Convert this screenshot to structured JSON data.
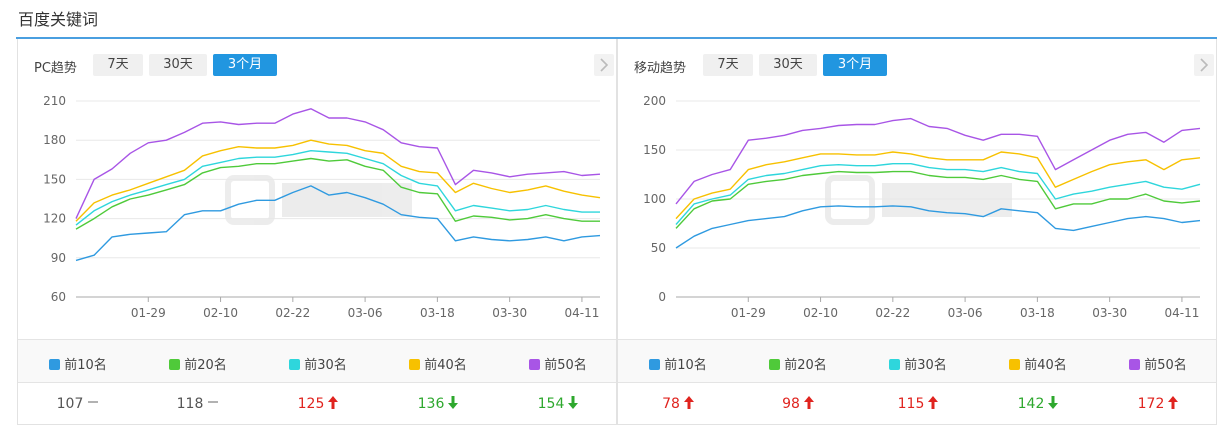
{
  "page": {
    "title": "百度关键词"
  },
  "colors": {
    "top10": "#2f9ae0",
    "top20": "#4fca3a",
    "top30": "#2ed6dc",
    "top40": "#f7c100",
    "top50": "#a855e6",
    "up": "#e0241f",
    "down": "#2ea82e",
    "flat": "#555555"
  },
  "ranges": [
    "7天",
    "30天",
    "3个月"
  ],
  "legend": [
    "前10名",
    "前20名",
    "前30名",
    "前40名",
    "前50名"
  ],
  "panels": [
    {
      "label": "PC趋势",
      "active_range": "3个月",
      "values": [
        {
          "value": "107",
          "trend": "flat"
        },
        {
          "value": "118",
          "trend": "flat"
        },
        {
          "value": "125",
          "trend": "up"
        },
        {
          "value": "136",
          "trend": "down"
        },
        {
          "value": "154",
          "trend": "down"
        }
      ]
    },
    {
      "label": "移动趋势",
      "active_range": "3个月",
      "values": [
        {
          "value": "78",
          "trend": "up"
        },
        {
          "value": "98",
          "trend": "up"
        },
        {
          "value": "115",
          "trend": "up"
        },
        {
          "value": "142",
          "trend": "down"
        },
        {
          "value": "172",
          "trend": "up"
        }
      ]
    }
  ],
  "chart_data": [
    {
      "type": "line",
      "title": "PC趋势",
      "xlabel": "",
      "ylabel": "",
      "ylim": [
        60,
        210
      ],
      "yticks": [
        60,
        90,
        120,
        150,
        180,
        210
      ],
      "xticks": [
        "01-29",
        "02-10",
        "02-22",
        "03-06",
        "03-18",
        "03-30",
        "04-11"
      ],
      "x": [
        "01-17",
        "01-20",
        "01-23",
        "01-26",
        "01-29",
        "02-01",
        "02-04",
        "02-07",
        "02-10",
        "02-13",
        "02-16",
        "02-19",
        "02-22",
        "02-25",
        "02-28",
        "03-03",
        "03-06",
        "03-09",
        "03-12",
        "03-15",
        "03-18",
        "03-21",
        "03-24",
        "03-27",
        "03-30",
        "04-02",
        "04-05",
        "04-08",
        "04-11",
        "04-14"
      ],
      "grid": true,
      "legend_position": "bottom",
      "series": [
        {
          "name": "前10名",
          "values": [
            88,
            92,
            106,
            108,
            109,
            110,
            123,
            126,
            126,
            131,
            134,
            134,
            140,
            145,
            138,
            140,
            136,
            131,
            123,
            121,
            120,
            103,
            106,
            104,
            103,
            104,
            106,
            103,
            106,
            107
          ]
        },
        {
          "name": "前20名",
          "values": [
            112,
            120,
            129,
            135,
            138,
            142,
            146,
            155,
            159,
            160,
            162,
            162,
            164,
            166,
            164,
            165,
            160,
            157,
            144,
            140,
            139,
            118,
            122,
            121,
            119,
            120,
            123,
            120,
            118,
            118
          ]
        },
        {
          "name": "前30名",
          "values": [
            115,
            126,
            133,
            138,
            142,
            146,
            150,
            160,
            163,
            166,
            167,
            167,
            169,
            172,
            171,
            170,
            166,
            162,
            153,
            147,
            145,
            126,
            130,
            128,
            126,
            127,
            130,
            127,
            125,
            125
          ]
        },
        {
          "name": "前40名",
          "values": [
            118,
            132,
            138,
            142,
            147,
            152,
            157,
            168,
            172,
            175,
            174,
            174,
            176,
            180,
            177,
            176,
            172,
            170,
            160,
            156,
            155,
            140,
            147,
            143,
            140,
            142,
            145,
            141,
            138,
            136
          ]
        },
        {
          "name": "前50名",
          "values": [
            120,
            150,
            158,
            170,
            178,
            180,
            186,
            193,
            194,
            192,
            193,
            193,
            200,
            204,
            197,
            197,
            194,
            188,
            178,
            175,
            174,
            146,
            157,
            155,
            152,
            154,
            155,
            156,
            153,
            154
          ]
        }
      ]
    },
    {
      "type": "line",
      "title": "移动趋势",
      "xlabel": "",
      "ylabel": "",
      "ylim": [
        0,
        200
      ],
      "yticks": [
        0,
        50,
        100,
        150,
        200
      ],
      "xticks": [
        "01-29",
        "02-10",
        "02-22",
        "03-06",
        "03-18",
        "03-30",
        "04-11"
      ],
      "x": [
        "01-17",
        "01-20",
        "01-23",
        "01-26",
        "01-29",
        "02-01",
        "02-04",
        "02-07",
        "02-10",
        "02-13",
        "02-16",
        "02-19",
        "02-22",
        "02-25",
        "02-28",
        "03-03",
        "03-06",
        "03-09",
        "03-12",
        "03-15",
        "03-18",
        "03-21",
        "03-24",
        "03-27",
        "03-30",
        "04-02",
        "04-05",
        "04-08",
        "04-11",
        "04-14"
      ],
      "grid": true,
      "legend_position": "bottom",
      "series": [
        {
          "name": "前10名",
          "values": [
            50,
            62,
            70,
            74,
            78,
            80,
            82,
            88,
            92,
            93,
            92,
            92,
            93,
            92,
            88,
            86,
            85,
            82,
            90,
            88,
            86,
            70,
            68,
            72,
            76,
            80,
            82,
            80,
            76,
            78
          ]
        },
        {
          "name": "前20名",
          "values": [
            70,
            90,
            98,
            100,
            115,
            118,
            120,
            124,
            126,
            128,
            127,
            127,
            128,
            128,
            124,
            122,
            122,
            120,
            124,
            120,
            118,
            90,
            95,
            95,
            100,
            100,
            105,
            98,
            96,
            98
          ]
        },
        {
          "name": "前30名",
          "values": [
            74,
            95,
            100,
            104,
            120,
            124,
            126,
            130,
            134,
            135,
            134,
            134,
            136,
            136,
            132,
            130,
            130,
            128,
            132,
            128,
            126,
            100,
            105,
            108,
            112,
            115,
            118,
            112,
            110,
            115
          ]
        },
        {
          "name": "前40名",
          "values": [
            80,
            100,
            106,
            110,
            130,
            135,
            138,
            142,
            146,
            146,
            145,
            145,
            148,
            146,
            142,
            140,
            140,
            140,
            148,
            146,
            142,
            112,
            120,
            128,
            135,
            138,
            140,
            130,
            140,
            142
          ]
        },
        {
          "name": "前50名",
          "values": [
            95,
            118,
            125,
            130,
            160,
            162,
            165,
            170,
            172,
            175,
            176,
            176,
            180,
            182,
            174,
            172,
            165,
            160,
            166,
            166,
            164,
            130,
            140,
            150,
            160,
            166,
            168,
            158,
            170,
            172
          ]
        }
      ]
    }
  ]
}
